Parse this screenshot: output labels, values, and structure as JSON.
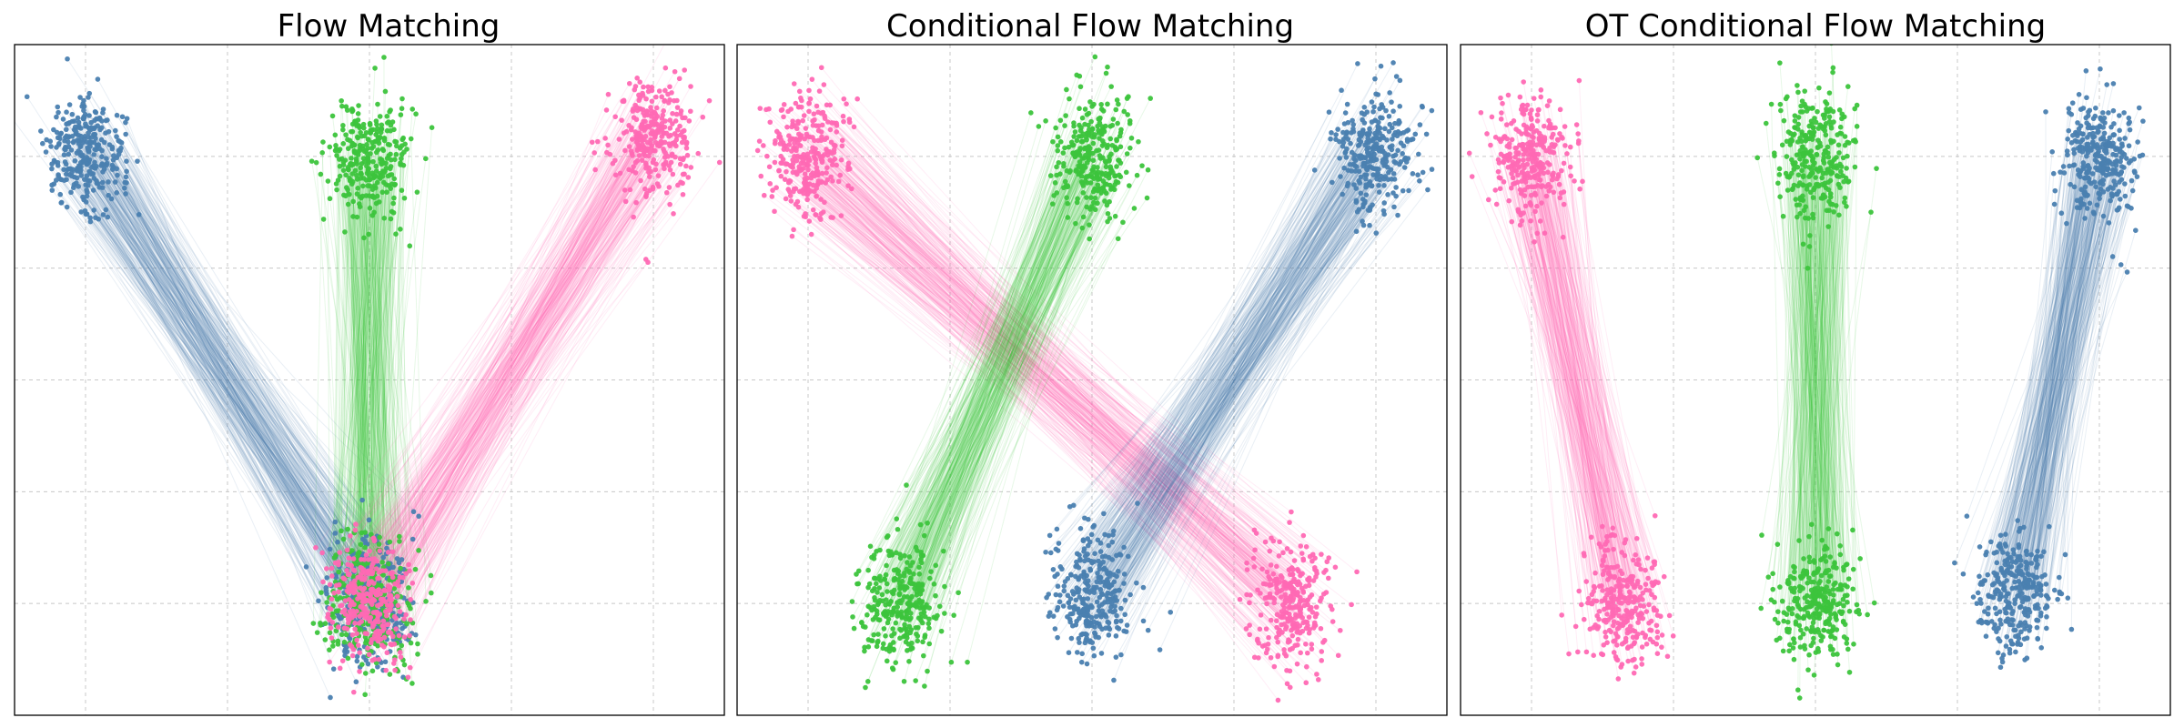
{
  "figure": {
    "panel_titles": [
      "Flow Matching",
      "Conditional Flow Matching",
      "OT Conditional Flow Matching"
    ]
  },
  "colors": {
    "blue": "#4a7fb0",
    "green": "#3cc43c",
    "pink": "#ff69b4",
    "grid": "#c8c8c8"
  },
  "chart_data": [
    {
      "type": "scatter",
      "title": "Flow Matching",
      "xlim": [
        0,
        10
      ],
      "ylim": [
        0,
        6
      ],
      "grid": true,
      "point_std": 0.28,
      "samples_per_cluster": 300,
      "series": [
        {
          "color": "blue",
          "source_center": [
            1.0,
            5.0
          ],
          "target_center": [
            5.0,
            1.0
          ]
        },
        {
          "color": "green",
          "source_center": [
            5.0,
            5.0
          ],
          "target_center": [
            5.0,
            1.0
          ]
        },
        {
          "color": "pink",
          "source_center": [
            9.0,
            5.2
          ],
          "target_center": [
            5.0,
            1.0
          ]
        }
      ]
    },
    {
      "type": "scatter",
      "title": "Conditional Flow Matching",
      "xlim": [
        0,
        10
      ],
      "ylim": [
        0,
        6
      ],
      "grid": true,
      "point_std": 0.28,
      "samples_per_cluster": 300,
      "series": [
        {
          "color": "pink",
          "source_center": [
            1.0,
            5.0
          ],
          "target_center": [
            7.8,
            1.0
          ]
        },
        {
          "color": "green",
          "source_center": [
            5.0,
            5.0
          ],
          "target_center": [
            2.3,
            1.0
          ]
        },
        {
          "color": "blue",
          "source_center": [
            9.0,
            5.0
          ],
          "target_center": [
            5.0,
            1.1
          ]
        }
      ]
    },
    {
      "type": "scatter",
      "title": "OT Conditional Flow Matching",
      "xlim": [
        0,
        10
      ],
      "ylim": [
        0,
        6
      ],
      "grid": true,
      "point_std": 0.28,
      "samples_per_cluster": 300,
      "series": [
        {
          "color": "pink",
          "source_center": [
            1.0,
            5.0
          ],
          "target_center": [
            2.3,
            1.0
          ]
        },
        {
          "color": "green",
          "source_center": [
            5.0,
            5.0
          ],
          "target_center": [
            5.0,
            1.0
          ]
        },
        {
          "color": "blue",
          "source_center": [
            9.0,
            5.0
          ],
          "target_center": [
            7.8,
            1.1
          ]
        }
      ]
    }
  ]
}
